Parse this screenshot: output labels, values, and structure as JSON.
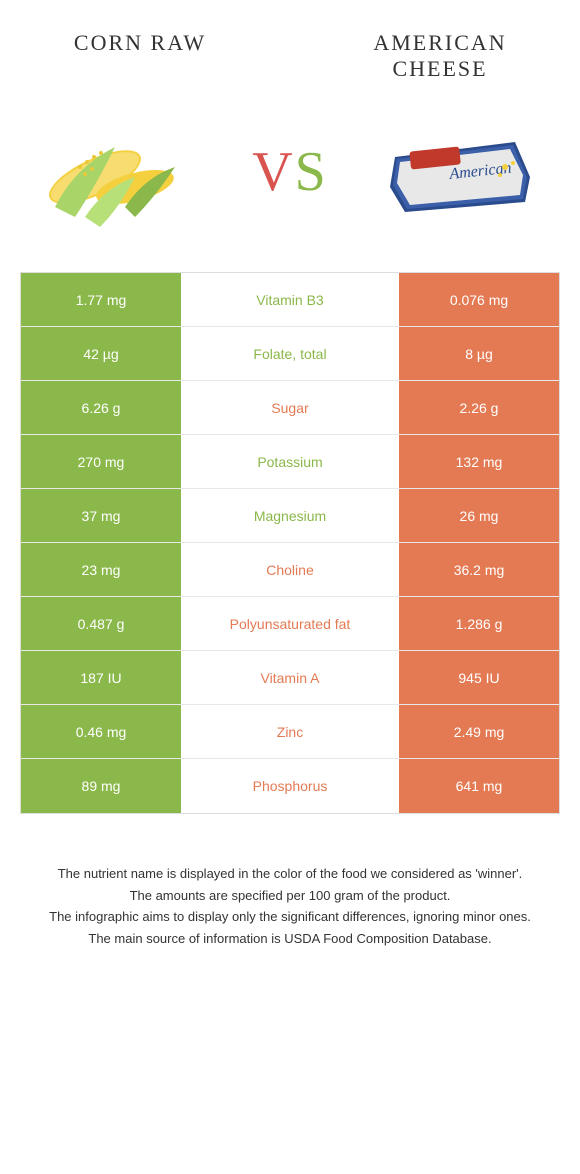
{
  "colors": {
    "corn": "#8bb84a",
    "cheese": "#e47a53",
    "vs_v": "#d9534f",
    "vs_s": "#8bb84a"
  },
  "header": {
    "left_title": "Corn Raw",
    "right_title": "American Cheese",
    "vs_v": "V",
    "vs_s": "S"
  },
  "rows": [
    {
      "left": "1.77 mg",
      "label": "Vitamin B3",
      "right": "0.076 mg",
      "winner": "corn"
    },
    {
      "left": "42 µg",
      "label": "Folate, total",
      "right": "8 µg",
      "winner": "corn"
    },
    {
      "left": "6.26 g",
      "label": "Sugar",
      "right": "2.26 g",
      "winner": "cheese"
    },
    {
      "left": "270 mg",
      "label": "Potassium",
      "right": "132 mg",
      "winner": "corn"
    },
    {
      "left": "37 mg",
      "label": "Magnesium",
      "right": "26 mg",
      "winner": "corn"
    },
    {
      "left": "23 mg",
      "label": "Choline",
      "right": "36.2 mg",
      "winner": "cheese"
    },
    {
      "left": "0.487 g",
      "label": "Polyunsaturated fat",
      "right": "1.286 g",
      "winner": "cheese"
    },
    {
      "left": "187 IU",
      "label": "Vitamin A",
      "right": "945 IU",
      "winner": "cheese"
    },
    {
      "left": "0.46 mg",
      "label": "Zinc",
      "right": "2.49 mg",
      "winner": "cheese"
    },
    {
      "left": "89 mg",
      "label": "Phosphorus",
      "right": "641 mg",
      "winner": "cheese"
    }
  ],
  "notes": {
    "l1": "The nutrient name is displayed in the color of the food we considered as 'winner'.",
    "l2": "The amounts are specified per 100 gram of the product.",
    "l3": "The infographic aims to display only the significant differences, ignoring minor ones.",
    "l4": "The main source of information is USDA Food Composition Database."
  }
}
